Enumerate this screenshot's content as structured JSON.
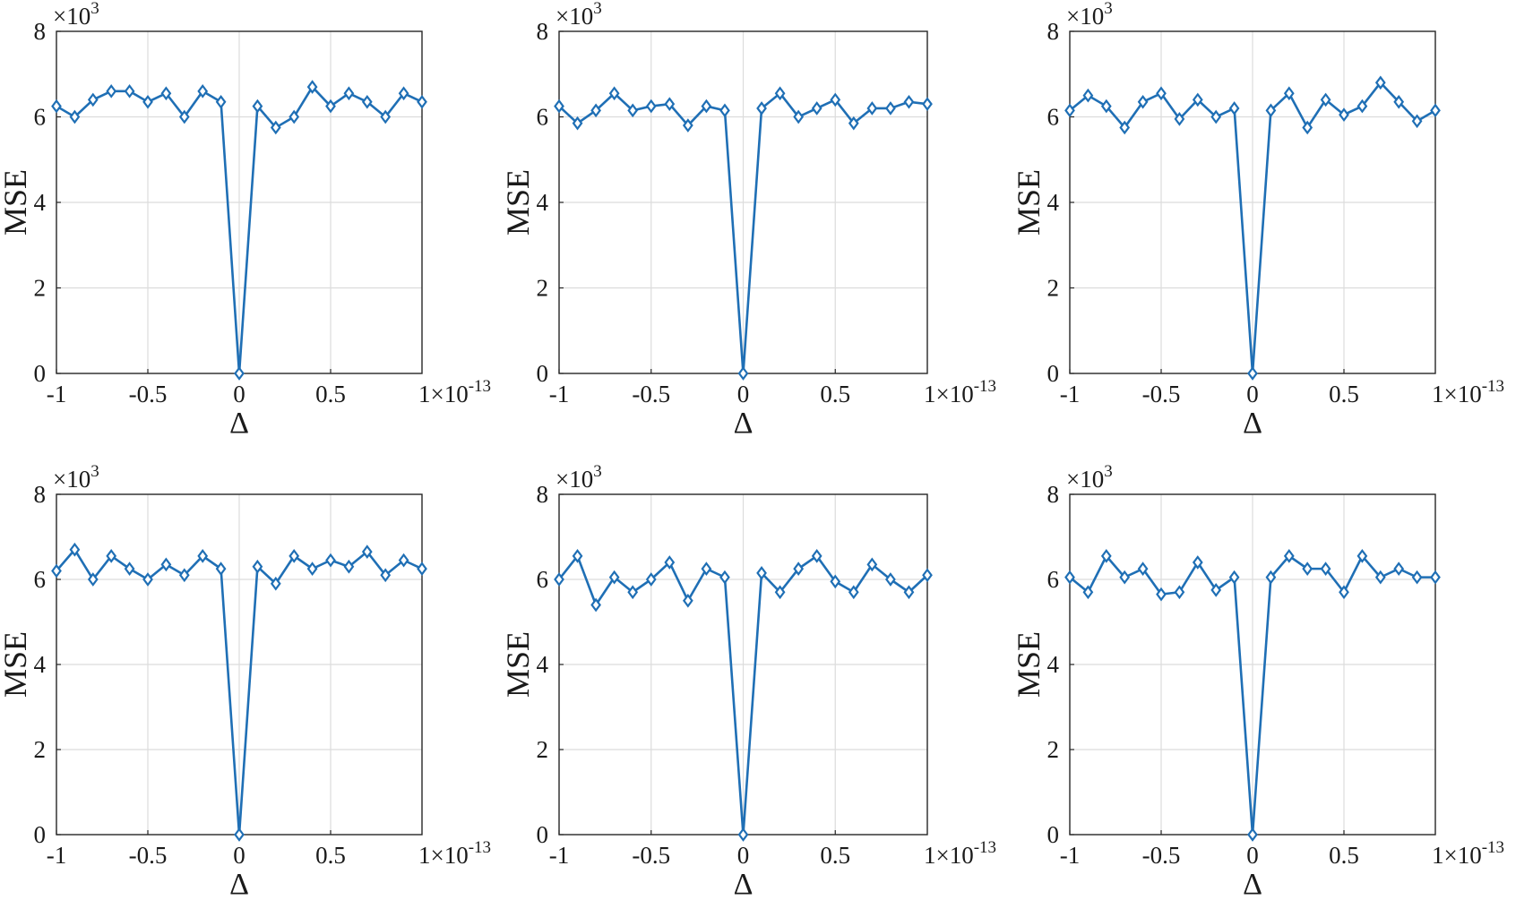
{
  "chart_data": [
    {
      "type": "line",
      "panel": "top-left",
      "xlabel": "Δ",
      "ylabel": "MSE",
      "x_multiplier": "1×10",
      "x_multiplier_exp": "-13",
      "y_multiplier": "×10",
      "y_multiplier_exp": "3",
      "x_ticks": [
        "-1",
        "-0.5",
        "0",
        "0.5"
      ],
      "y_ticks": [
        "0",
        "2",
        "4",
        "6",
        "8"
      ],
      "xlim": [
        -1,
        1
      ],
      "ylim": [
        0,
        8
      ],
      "grid": true,
      "line_color": "#1f6fb5",
      "marker": "diamond",
      "x": [
        -1,
        -0.9,
        -0.8,
        -0.7,
        -0.6,
        -0.5,
        -0.4,
        -0.3,
        -0.2,
        -0.1,
        0,
        0.1,
        0.2,
        0.3,
        0.4,
        0.5,
        0.6,
        0.7,
        0.8,
        0.9,
        1
      ],
      "series": [
        {
          "values": [
            6.25,
            6.0,
            6.4,
            6.6,
            6.6,
            6.35,
            6.55,
            6.0,
            6.6,
            6.35,
            0,
            6.25,
            5.75,
            6.0,
            6.7,
            6.25,
            6.55,
            6.35,
            6.0,
            6.55,
            6.35
          ]
        }
      ]
    },
    {
      "type": "line",
      "panel": "top-middle",
      "xlabel": "Δ",
      "ylabel": "MSE",
      "x_multiplier": "1×10",
      "x_multiplier_exp": "-13",
      "y_multiplier": "×10",
      "y_multiplier_exp": "3",
      "x_ticks": [
        "-1",
        "-0.5",
        "0",
        "0.5"
      ],
      "y_ticks": [
        "0",
        "2",
        "4",
        "6",
        "8"
      ],
      "xlim": [
        -1,
        1
      ],
      "ylim": [
        0,
        8
      ],
      "grid": true,
      "line_color": "#1f6fb5",
      "marker": "diamond",
      "x": [
        -1,
        -0.9,
        -0.8,
        -0.7,
        -0.6,
        -0.5,
        -0.4,
        -0.3,
        -0.2,
        -0.1,
        0,
        0.1,
        0.2,
        0.3,
        0.4,
        0.5,
        0.6,
        0.7,
        0.8,
        0.9,
        1
      ],
      "series": [
        {
          "values": [
            6.25,
            5.85,
            6.15,
            6.55,
            6.15,
            6.25,
            6.3,
            5.8,
            6.25,
            6.15,
            0,
            6.2,
            6.55,
            6.0,
            6.2,
            6.4,
            5.85,
            6.2,
            6.2,
            6.35,
            6.3
          ]
        }
      ]
    },
    {
      "type": "line",
      "panel": "top-right",
      "xlabel": "Δ",
      "ylabel": "MSE",
      "x_multiplier": "1×10",
      "x_multiplier_exp": "-13",
      "y_multiplier": "×10",
      "y_multiplier_exp": "3",
      "x_ticks": [
        "-1",
        "-0.5",
        "0",
        "0.5"
      ],
      "y_ticks": [
        "0",
        "2",
        "4",
        "6",
        "8"
      ],
      "xlim": [
        -1,
        1
      ],
      "ylim": [
        0,
        8
      ],
      "grid": true,
      "line_color": "#1f6fb5",
      "marker": "diamond",
      "x": [
        -1,
        -0.9,
        -0.8,
        -0.7,
        -0.6,
        -0.5,
        -0.4,
        -0.3,
        -0.2,
        -0.1,
        0,
        0.1,
        0.2,
        0.3,
        0.4,
        0.5,
        0.6,
        0.7,
        0.8,
        0.9,
        1
      ],
      "series": [
        {
          "values": [
            6.15,
            6.5,
            6.25,
            5.75,
            6.35,
            6.55,
            5.95,
            6.4,
            6.0,
            6.2,
            0,
            6.15,
            6.55,
            5.75,
            6.4,
            6.05,
            6.25,
            6.8,
            6.35,
            5.9,
            6.15
          ]
        }
      ]
    },
    {
      "type": "line",
      "panel": "bottom-left",
      "xlabel": "Δ",
      "ylabel": "MSE",
      "x_multiplier": "1×10",
      "x_multiplier_exp": "-13",
      "y_multiplier": "×10",
      "y_multiplier_exp": "3",
      "x_ticks": [
        "-1",
        "-0.5",
        "0",
        "0.5"
      ],
      "y_ticks": [
        "0",
        "2",
        "4",
        "6",
        "8"
      ],
      "xlim": [
        -1,
        1
      ],
      "ylim": [
        0,
        8
      ],
      "grid": true,
      "line_color": "#1f6fb5",
      "marker": "diamond",
      "x": [
        -1,
        -0.9,
        -0.8,
        -0.7,
        -0.6,
        -0.5,
        -0.4,
        -0.3,
        -0.2,
        -0.1,
        0,
        0.1,
        0.2,
        0.3,
        0.4,
        0.5,
        0.6,
        0.7,
        0.8,
        0.9,
        1
      ],
      "series": [
        {
          "values": [
            6.2,
            6.7,
            6.0,
            6.55,
            6.25,
            6.0,
            6.35,
            6.1,
            6.55,
            6.25,
            0,
            6.3,
            5.9,
            6.55,
            6.25,
            6.45,
            6.3,
            6.65,
            6.1,
            6.45,
            6.25
          ]
        }
      ]
    },
    {
      "type": "line",
      "panel": "bottom-middle",
      "xlabel": "Δ",
      "ylabel": "MSE",
      "x_multiplier": "1×10",
      "x_multiplier_exp": "-13",
      "y_multiplier": "×10",
      "y_multiplier_exp": "3",
      "x_ticks": [
        "-1",
        "-0.5",
        "0",
        "0.5"
      ],
      "y_ticks": [
        "0",
        "2",
        "4",
        "6",
        "8"
      ],
      "xlim": [
        -1,
        1
      ],
      "ylim": [
        0,
        8
      ],
      "grid": true,
      "line_color": "#1f6fb5",
      "marker": "diamond",
      "x": [
        -1,
        -0.9,
        -0.8,
        -0.7,
        -0.6,
        -0.5,
        -0.4,
        -0.3,
        -0.2,
        -0.1,
        0,
        0.1,
        0.2,
        0.3,
        0.4,
        0.5,
        0.6,
        0.7,
        0.8,
        0.9,
        1
      ],
      "series": [
        {
          "values": [
            6.0,
            6.55,
            5.4,
            6.05,
            5.7,
            6.0,
            6.4,
            5.5,
            6.25,
            6.05,
            0,
            6.15,
            5.7,
            6.25,
            6.55,
            5.95,
            5.7,
            6.35,
            6.0,
            5.7,
            6.1
          ]
        }
      ]
    },
    {
      "type": "line",
      "panel": "bottom-right",
      "xlabel": "Δ",
      "ylabel": "MSE",
      "x_multiplier": "1×10",
      "x_multiplier_exp": "-13",
      "y_multiplier": "×10",
      "y_multiplier_exp": "3",
      "x_ticks": [
        "-1",
        "-0.5",
        "0",
        "0.5"
      ],
      "y_ticks": [
        "0",
        "2",
        "4",
        "6",
        "8"
      ],
      "xlim": [
        -1,
        1
      ],
      "ylim": [
        0,
        8
      ],
      "grid": true,
      "line_color": "#1f6fb5",
      "marker": "diamond",
      "x": [
        -1,
        -0.9,
        -0.8,
        -0.7,
        -0.6,
        -0.5,
        -0.4,
        -0.3,
        -0.2,
        -0.1,
        0,
        0.1,
        0.2,
        0.3,
        0.4,
        0.5,
        0.6,
        0.7,
        0.8,
        0.9,
        1
      ],
      "series": [
        {
          "values": [
            6.05,
            5.7,
            6.55,
            6.05,
            6.25,
            5.65,
            5.7,
            6.4,
            5.75,
            6.05,
            0,
            6.05,
            6.55,
            6.25,
            6.25,
            5.7,
            6.55,
            6.05,
            6.25,
            6.05,
            6.05
          ]
        }
      ]
    }
  ]
}
